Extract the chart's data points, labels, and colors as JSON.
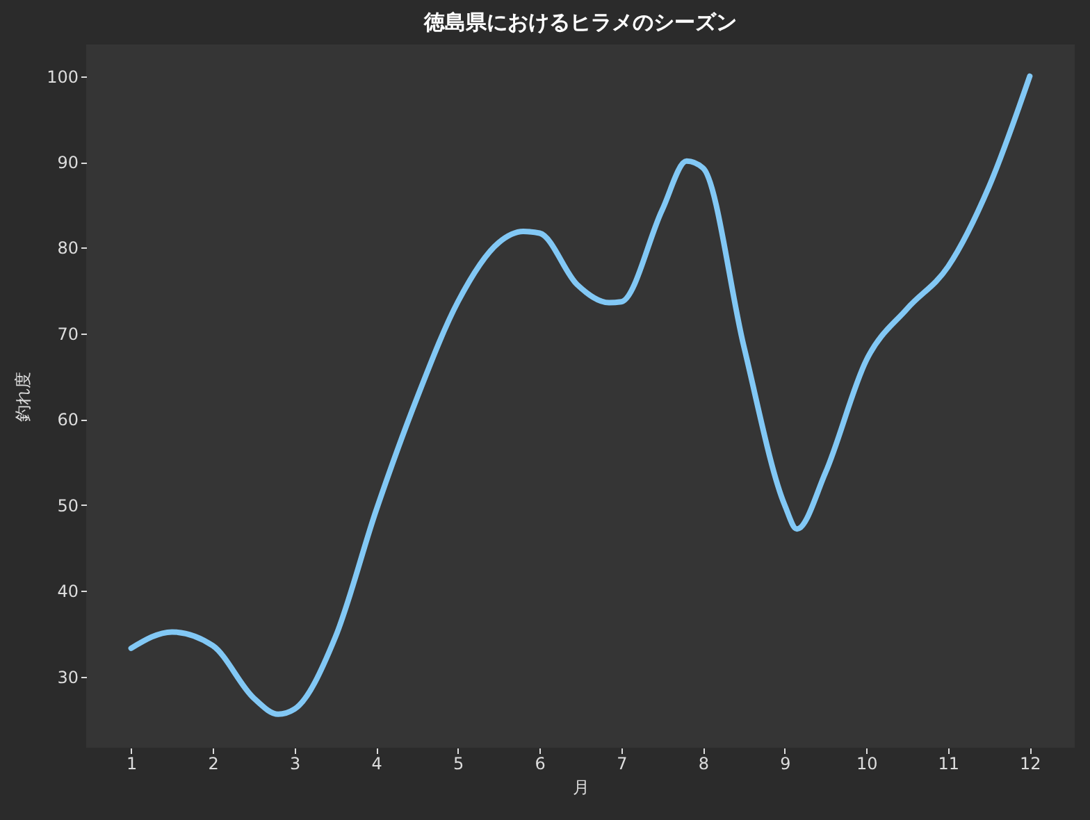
{
  "chart_data": {
    "type": "line",
    "title": "徳島県におけるヒラメのシーズン",
    "xlabel": "月",
    "ylabel": "釣れ度",
    "x": [
      1,
      1.5,
      2,
      2.5,
      2.8,
      3,
      3.5,
      4,
      4.5,
      5,
      5.5,
      5.8,
      6,
      6.46,
      6.85,
      7,
      7.5,
      7.8,
      8,
      8.5,
      9,
      9.15,
      9.5,
      10,
      10.5,
      11,
      11.5,
      12
    ],
    "series": [
      {
        "color": "#82c8f5",
        "values": [
          33.3,
          35.2,
          33.6,
          27.5,
          25.6,
          26.2,
          34.6,
          49.4,
          62.5,
          73.7,
          80.6,
          81.9,
          81.7,
          75.7,
          73.6,
          73.7,
          84.4,
          90.1,
          89.3,
          68.5,
          50,
          47.2,
          53.8,
          66.9,
          72.9,
          77.8,
          87.1,
          100
        ]
      }
    ],
    "xlim": [
      0.45,
      12.55
    ],
    "ylim": [
      21.7,
      103.7
    ],
    "xticks": [
      1,
      2,
      3,
      4,
      5,
      6,
      7,
      8,
      9,
      10,
      11,
      12
    ],
    "yticks": [
      30,
      40,
      50,
      60,
      70,
      80,
      90,
      100
    ],
    "grid": false,
    "marker": "none",
    "line_style": "solid"
  }
}
